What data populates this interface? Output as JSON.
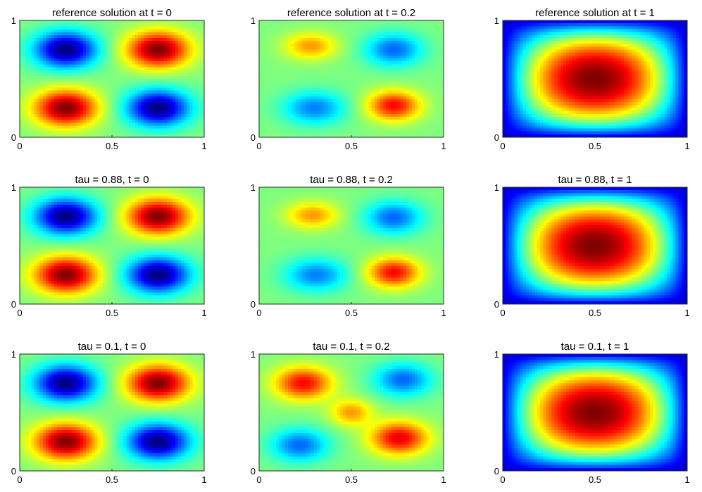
{
  "chart_data": [
    {
      "type": "heatmap",
      "title": "reference solution at t = 0",
      "x_ticks": [
        "0",
        "0.5",
        "1"
      ],
      "y_ticks": [
        "0",
        "1"
      ],
      "xlim": [
        0,
        1
      ],
      "ylim": [
        0,
        1
      ],
      "colormap": "jet",
      "blobs": [
        {
          "x": 0.25,
          "y": 0.75,
          "value": -1,
          "sx": 0.12,
          "sy": 0.11
        },
        {
          "x": 0.75,
          "y": 0.75,
          "value": 1,
          "sx": 0.12,
          "sy": 0.11
        },
        {
          "x": 0.25,
          "y": 0.25,
          "value": 1,
          "sx": 0.12,
          "sy": 0.11
        },
        {
          "x": 0.75,
          "y": 0.25,
          "value": -1,
          "sx": 0.12,
          "sy": 0.11
        }
      ]
    },
    {
      "type": "heatmap",
      "title": "reference solution at t = 0.2",
      "x_ticks": [
        "0",
        "0.5",
        "1"
      ],
      "y_ticks": [
        "0",
        "1"
      ],
      "xlim": [
        0,
        1
      ],
      "ylim": [
        0,
        1
      ],
      "colormap": "jet",
      "blobs": [
        {
          "x": 0.28,
          "y": 0.78,
          "value": 0.45,
          "sx": 0.1,
          "sy": 0.08
        },
        {
          "x": 0.73,
          "y": 0.75,
          "value": -0.55,
          "sx": 0.11,
          "sy": 0.1
        },
        {
          "x": 0.3,
          "y": 0.25,
          "value": -0.5,
          "sx": 0.12,
          "sy": 0.1
        },
        {
          "x": 0.73,
          "y": 0.27,
          "value": 0.75,
          "sx": 0.1,
          "sy": 0.09
        }
      ]
    },
    {
      "type": "heatmap",
      "title": "reference solution at t = 1",
      "x_ticks": [
        "0",
        "0.5",
        "1"
      ],
      "y_ticks": [
        "0",
        "1"
      ],
      "xlim": [
        0,
        1
      ],
      "ylim": [
        0,
        1
      ],
      "colormap": "jet",
      "profile": "sine-dome"
    },
    {
      "type": "heatmap",
      "title": "tau = 0.88, t = 0",
      "x_ticks": [
        "0",
        "0.5",
        "1"
      ],
      "y_ticks": [
        "0",
        "1"
      ],
      "xlim": [
        0,
        1
      ],
      "ylim": [
        0,
        1
      ],
      "colormap": "jet",
      "blobs": [
        {
          "x": 0.25,
          "y": 0.75,
          "value": -1,
          "sx": 0.12,
          "sy": 0.11
        },
        {
          "x": 0.75,
          "y": 0.75,
          "value": 1,
          "sx": 0.12,
          "sy": 0.11
        },
        {
          "x": 0.25,
          "y": 0.25,
          "value": 1,
          "sx": 0.12,
          "sy": 0.11
        },
        {
          "x": 0.75,
          "y": 0.25,
          "value": -1,
          "sx": 0.12,
          "sy": 0.11
        }
      ]
    },
    {
      "type": "heatmap",
      "title": "tau = 0.88, t = 0.2",
      "x_ticks": [
        "0",
        "0.5",
        "1"
      ],
      "y_ticks": [
        "0",
        "1"
      ],
      "xlim": [
        0,
        1
      ],
      "ylim": [
        0,
        1
      ],
      "colormap": "jet",
      "blobs": [
        {
          "x": 0.29,
          "y": 0.76,
          "value": 0.45,
          "sx": 0.1,
          "sy": 0.08
        },
        {
          "x": 0.73,
          "y": 0.74,
          "value": -0.55,
          "sx": 0.11,
          "sy": 0.1
        },
        {
          "x": 0.31,
          "y": 0.25,
          "value": -0.5,
          "sx": 0.12,
          "sy": 0.1
        },
        {
          "x": 0.73,
          "y": 0.27,
          "value": 0.75,
          "sx": 0.1,
          "sy": 0.09
        }
      ]
    },
    {
      "type": "heatmap",
      "title": "tau = 0.88, t = 1",
      "x_ticks": [
        "0",
        "0.5",
        "1"
      ],
      "y_ticks": [
        "0",
        "1"
      ],
      "xlim": [
        0,
        1
      ],
      "ylim": [
        0,
        1
      ],
      "colormap": "jet",
      "profile": "sine-dome"
    },
    {
      "type": "heatmap",
      "title": "tau = 0.1, t = 0",
      "x_ticks": [
        "0",
        "0.5",
        "1"
      ],
      "y_ticks": [
        "0",
        "1"
      ],
      "xlim": [
        0,
        1
      ],
      "ylim": [
        0,
        1
      ],
      "colormap": "jet",
      "blobs": [
        {
          "x": 0.25,
          "y": 0.75,
          "value": -1,
          "sx": 0.12,
          "sy": 0.11
        },
        {
          "x": 0.75,
          "y": 0.75,
          "value": 1,
          "sx": 0.12,
          "sy": 0.11
        },
        {
          "x": 0.25,
          "y": 0.25,
          "value": 1,
          "sx": 0.12,
          "sy": 0.11
        },
        {
          "x": 0.75,
          "y": 0.25,
          "value": -1,
          "sx": 0.12,
          "sy": 0.11
        }
      ]
    },
    {
      "type": "heatmap",
      "title": "tau = 0.1, t = 0.2",
      "x_ticks": [
        "0",
        "0.5",
        "1"
      ],
      "y_ticks": [
        "0",
        "1"
      ],
      "xlim": [
        0,
        1
      ],
      "ylim": [
        0,
        1
      ],
      "colormap": "jet",
      "blobs": [
        {
          "x": 0.24,
          "y": 0.75,
          "value": 0.75,
          "sx": 0.11,
          "sy": 0.1
        },
        {
          "x": 0.78,
          "y": 0.78,
          "value": -0.55,
          "sx": 0.11,
          "sy": 0.1
        },
        {
          "x": 0.22,
          "y": 0.22,
          "value": -0.55,
          "sx": 0.11,
          "sy": 0.1
        },
        {
          "x": 0.76,
          "y": 0.28,
          "value": 0.8,
          "sx": 0.11,
          "sy": 0.1
        },
        {
          "x": 0.5,
          "y": 0.5,
          "value": 0.45,
          "sx": 0.08,
          "sy": 0.08
        }
      ]
    },
    {
      "type": "heatmap",
      "title": "tau = 0.1, t = 1",
      "x_ticks": [
        "0",
        "0.5",
        "1"
      ],
      "y_ticks": [
        "0",
        "1"
      ],
      "xlim": [
        0,
        1
      ],
      "ylim": [
        0,
        1
      ],
      "colormap": "jet",
      "profile": "sine-dome"
    }
  ]
}
